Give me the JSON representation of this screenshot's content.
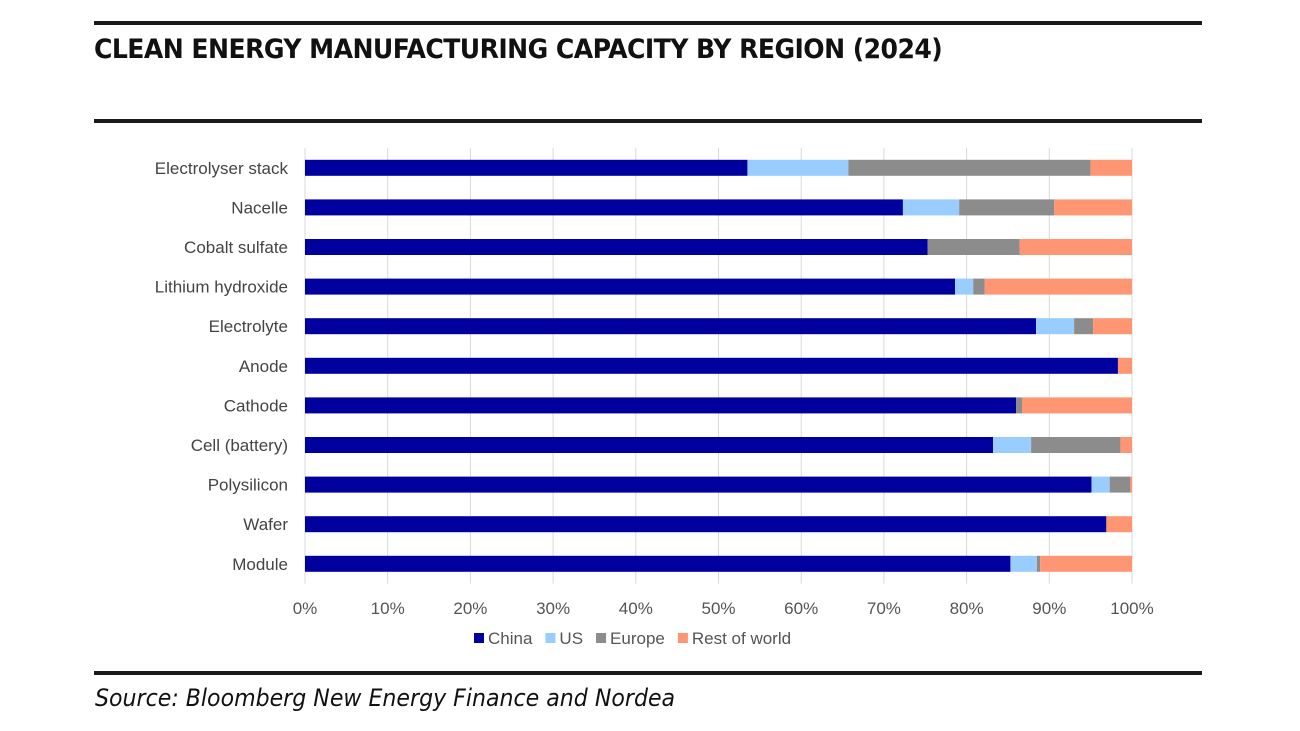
{
  "header": {
    "title": "CLEAN ENERGY MANUFACTURING CAPACITY BY REGION (2024)"
  },
  "footer": {
    "source": "Source: Bloomberg New Energy Finance and Nordea"
  },
  "chart_data": {
    "type": "bar",
    "orientation": "horizontal",
    "stacked": true,
    "title": "CLEAN ENERGY MANUFACTURING CAPACITY BY REGION (2024)",
    "xlabel": "",
    "ylabel": "",
    "xlim": [
      0,
      100
    ],
    "x_unit": "%",
    "x_ticks": [
      "0%",
      "10%",
      "20%",
      "30%",
      "40%",
      "50%",
      "60%",
      "70%",
      "80%",
      "90%",
      "100%"
    ],
    "grid": "vertical",
    "legend_position": "bottom",
    "categories": [
      "Electrolyser stack",
      "Nacelle",
      "Cobalt sulfate",
      "Lithium hydroxide",
      "Electrolyte",
      "Anode",
      "Cathode",
      "Cell (battery)",
      "Polysilicon",
      "Wafer",
      "Module"
    ],
    "series": [
      {
        "name": "China",
        "color": "#00009f",
        "values": [
          53.5,
          72.3,
          75.3,
          78.6,
          88.4,
          98.3,
          86.0,
          83.2,
          95.1,
          96.9,
          85.3
        ]
      },
      {
        "name": "US",
        "color": "#99ccff",
        "values": [
          12.2,
          6.8,
          0.0,
          2.2,
          4.6,
          0.0,
          0.0,
          4.6,
          2.2,
          0.0,
          3.2
        ]
      },
      {
        "name": "Europe",
        "color": "#8c8c8c",
        "values": [
          29.3,
          11.5,
          11.1,
          1.4,
          2.3,
          0.0,
          0.7,
          10.8,
          2.5,
          0.0,
          0.4
        ]
      },
      {
        "name": "Rest of world",
        "color": "#ff9673",
        "values": [
          5.0,
          9.4,
          13.6,
          17.8,
          4.7,
          1.7,
          13.3,
          1.4,
          0.2,
          3.1,
          11.1
        ]
      }
    ]
  }
}
